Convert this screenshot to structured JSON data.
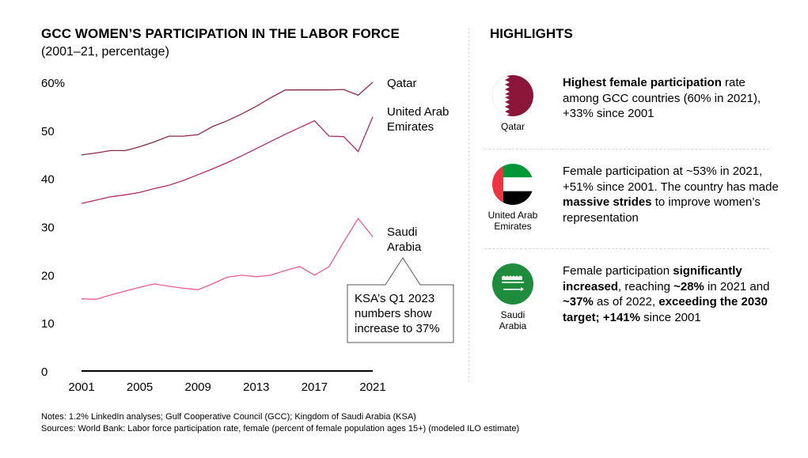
{
  "header": {
    "title": "GCC WOMEN’S PARTICIPATION IN THE LABOR FORCE",
    "subtitle": "(2001–21, percentage)"
  },
  "chart_data": {
    "type": "line",
    "title": "GCC WOMEN’S PARTICIPATION IN THE LABOR FORCE",
    "subtitle": "(2001–21, percentage)",
    "xlim": [
      2001,
      2021
    ],
    "ylim": [
      0,
      60
    ],
    "xticks": [
      "2001",
      "2005",
      "2009",
      "2013",
      "2017",
      "2021"
    ],
    "yticks": [
      "0",
      "10",
      "20",
      "30",
      "40",
      "50",
      "60%"
    ],
    "grid": false,
    "x": [
      2001,
      2002,
      2003,
      2004,
      2005,
      2006,
      2007,
      2008,
      2009,
      2010,
      2011,
      2012,
      2013,
      2014,
      2015,
      2016,
      2017,
      2018,
      2019,
      2020,
      2021
    ],
    "series": [
      {
        "name": "Qatar",
        "color": "#8a2a4a",
        "values": [
          44.9,
          45.3,
          45.8,
          45.8,
          46.6,
          47.6,
          48.8,
          48.8,
          49.1,
          50.8,
          52.0,
          53.4,
          55.0,
          56.8,
          58.4,
          58.4,
          58.4,
          58.4,
          58.5,
          57.3,
          60.0
        ]
      },
      {
        "name": "United Arab Emirates",
        "color": "#b22c6a",
        "values": [
          34.8,
          35.5,
          36.2,
          36.6,
          37.1,
          37.9,
          38.6,
          39.6,
          40.8,
          42.0,
          43.3,
          44.7,
          46.2,
          47.7,
          49.2,
          50.6,
          52.0,
          48.8,
          48.7,
          45.6,
          52.8
        ]
      },
      {
        "name": "Saudi Arabia",
        "color": "#ee5a8f",
        "values": [
          15.0,
          14.9,
          15.8,
          16.6,
          17.4,
          18.1,
          17.6,
          17.2,
          16.9,
          18.1,
          19.5,
          19.9,
          19.6,
          19.9,
          20.9,
          21.7,
          19.9,
          21.7,
          26.8,
          31.7,
          27.9
        ]
      }
    ],
    "series_labels": [
      "Qatar",
      "United Arab\nEmirates",
      "Saudi\nArabia"
    ],
    "annotation": "KSA’s Q1 2023\nnumbers show\nincrease to 37%"
  },
  "highlights": {
    "title": "HIGHLIGHTS",
    "items": [
      {
        "country": "Qatar",
        "flag_colors": [
          "#ffffff",
          "#8a1538"
        ],
        "pre": "",
        "bold1": "Highest female participation",
        "mid": " rate among GCC countries (60% in 2021), +33% since 2001",
        "bold2": "",
        "post": ""
      },
      {
        "country": "United Arab Emirates",
        "flag_colors": [
          "#ef3340",
          "#009739",
          "#ffffff",
          "#000000"
        ],
        "pre": "Female participation at ~53% in 2021, +51% since 2001. The country has made ",
        "bold1": "massive strides",
        "mid": " to improve women’s representation",
        "bold2": "",
        "post": ""
      },
      {
        "country": "Saudi Arabia",
        "flag_colors": [
          "#1e8c3c",
          "#ffffff"
        ],
        "pre": "Female participation ",
        "bold1": "significantly increased",
        "mid": ", reaching ",
        "bold2": "~28%",
        "post": " in 2021 and ",
        "bold3": "~37%",
        "post2": " as of 2022, ",
        "bold4": "exceeding the 2030 target; +141%",
        "post3": " since 2001"
      }
    ]
  },
  "footer": {
    "notes": "Notes: 1.2% LinkedIn analyses; Gulf Cooperative Council (GCC); Kingdom of Saudi Arabia (KSA)",
    "sources": "Sources: World Bank: Labor force participation rate, female (percent of female population ages 15+) (modeled ILO estimate)"
  }
}
